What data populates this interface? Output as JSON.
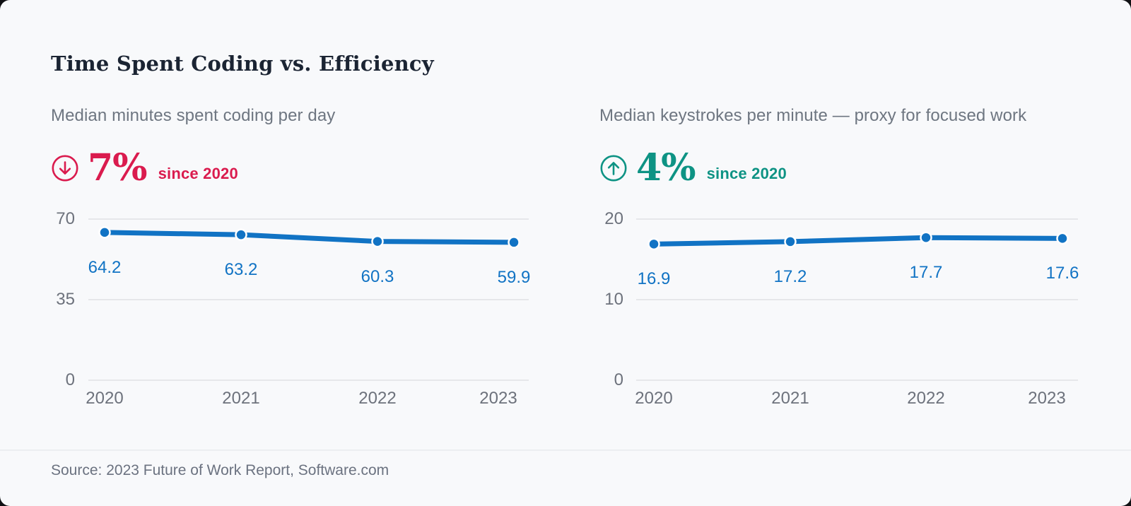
{
  "page": {
    "title": "Time Spent Coding vs. Efficiency",
    "source_note": "Source: 2023 Future of Work Report, Software.com"
  },
  "colors": {
    "background": "#f8f9fb",
    "title_text": "#1b2433",
    "muted_text": "#6e7681",
    "axis_text": "#6d727c",
    "gridline": "#e6e7ea",
    "line_blue": "#1173c4",
    "negative_red": "#da1b4e",
    "positive_teal": "#0e9384"
  },
  "chart_data": [
    {
      "type": "line",
      "title": "Median minutes spent coding per day",
      "stat": {
        "icon": "arrow-down-circle-icon",
        "direction": "down",
        "value": "7%",
        "caption": "since 2020",
        "color": "#da1b4e"
      },
      "x": [
        "2020",
        "2021",
        "2022",
        "2023"
      ],
      "series": [
        {
          "name": "Median minutes spent coding per day",
          "values": [
            64.2,
            63.2,
            60.3,
            59.9
          ]
        }
      ],
      "data_labels": [
        "64.2",
        "63.2",
        "60.3",
        "59.9"
      ],
      "yticks": [
        70,
        35,
        0
      ],
      "ylim": [
        0,
        70
      ],
      "line_color": "#1173c4",
      "grid": "horizontal",
      "legend": "none"
    },
    {
      "type": "line",
      "title": "Median keystrokes per minute — proxy for focused work",
      "stat": {
        "icon": "arrow-up-circle-icon",
        "direction": "up",
        "value": "4%",
        "caption": "since 2020",
        "color": "#0e9384"
      },
      "x": [
        "2020",
        "2021",
        "2022",
        "2023"
      ],
      "series": [
        {
          "name": "Median keystrokes per minute",
          "values": [
            16.9,
            17.2,
            17.7,
            17.6
          ]
        }
      ],
      "data_labels": [
        "16.9",
        "17.2",
        "17.7",
        "17.6"
      ],
      "yticks": [
        20,
        10,
        0
      ],
      "ylim": [
        0,
        20
      ],
      "line_color": "#1173c4",
      "grid": "horizontal",
      "legend": "none"
    }
  ]
}
